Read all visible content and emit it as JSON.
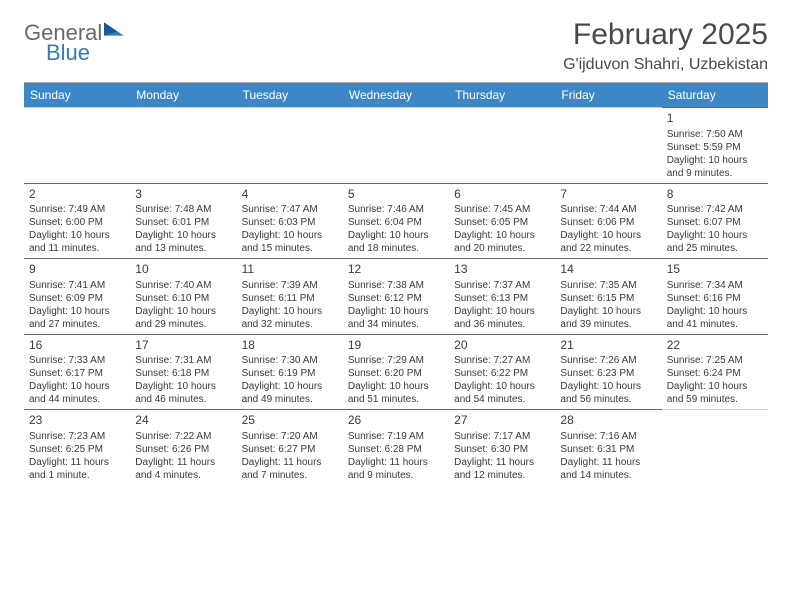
{
  "logo": {
    "text1": "General",
    "text2": "Blue"
  },
  "title": "February 2025",
  "subtitle": "G'ijduvon Shahri, Uzbekistan",
  "colors": {
    "header_bg": "#3d87c7",
    "header_text": "#ffffff",
    "body_text": "#3a3a3a",
    "rule": "#6a6a6a",
    "logo_gray": "#6a6a6a",
    "logo_blue": "#2f7bbf"
  },
  "day_labels": [
    "Sunday",
    "Monday",
    "Tuesday",
    "Wednesday",
    "Thursday",
    "Friday",
    "Saturday"
  ],
  "leading_blanks": 6,
  "days": [
    {
      "n": "1",
      "sr": "Sunrise: 7:50 AM",
      "ss": "Sunset: 5:59 PM",
      "dl1": "Daylight: 10 hours",
      "dl2": "and 9 minutes."
    },
    {
      "n": "2",
      "sr": "Sunrise: 7:49 AM",
      "ss": "Sunset: 6:00 PM",
      "dl1": "Daylight: 10 hours",
      "dl2": "and 11 minutes."
    },
    {
      "n": "3",
      "sr": "Sunrise: 7:48 AM",
      "ss": "Sunset: 6:01 PM",
      "dl1": "Daylight: 10 hours",
      "dl2": "and 13 minutes."
    },
    {
      "n": "4",
      "sr": "Sunrise: 7:47 AM",
      "ss": "Sunset: 6:03 PM",
      "dl1": "Daylight: 10 hours",
      "dl2": "and 15 minutes."
    },
    {
      "n": "5",
      "sr": "Sunrise: 7:46 AM",
      "ss": "Sunset: 6:04 PM",
      "dl1": "Daylight: 10 hours",
      "dl2": "and 18 minutes."
    },
    {
      "n": "6",
      "sr": "Sunrise: 7:45 AM",
      "ss": "Sunset: 6:05 PM",
      "dl1": "Daylight: 10 hours",
      "dl2": "and 20 minutes."
    },
    {
      "n": "7",
      "sr": "Sunrise: 7:44 AM",
      "ss": "Sunset: 6:06 PM",
      "dl1": "Daylight: 10 hours",
      "dl2": "and 22 minutes."
    },
    {
      "n": "8",
      "sr": "Sunrise: 7:42 AM",
      "ss": "Sunset: 6:07 PM",
      "dl1": "Daylight: 10 hours",
      "dl2": "and 25 minutes."
    },
    {
      "n": "9",
      "sr": "Sunrise: 7:41 AM",
      "ss": "Sunset: 6:09 PM",
      "dl1": "Daylight: 10 hours",
      "dl2": "and 27 minutes."
    },
    {
      "n": "10",
      "sr": "Sunrise: 7:40 AM",
      "ss": "Sunset: 6:10 PM",
      "dl1": "Daylight: 10 hours",
      "dl2": "and 29 minutes."
    },
    {
      "n": "11",
      "sr": "Sunrise: 7:39 AM",
      "ss": "Sunset: 6:11 PM",
      "dl1": "Daylight: 10 hours",
      "dl2": "and 32 minutes."
    },
    {
      "n": "12",
      "sr": "Sunrise: 7:38 AM",
      "ss": "Sunset: 6:12 PM",
      "dl1": "Daylight: 10 hours",
      "dl2": "and 34 minutes."
    },
    {
      "n": "13",
      "sr": "Sunrise: 7:37 AM",
      "ss": "Sunset: 6:13 PM",
      "dl1": "Daylight: 10 hours",
      "dl2": "and 36 minutes."
    },
    {
      "n": "14",
      "sr": "Sunrise: 7:35 AM",
      "ss": "Sunset: 6:15 PM",
      "dl1": "Daylight: 10 hours",
      "dl2": "and 39 minutes."
    },
    {
      "n": "15",
      "sr": "Sunrise: 7:34 AM",
      "ss": "Sunset: 6:16 PM",
      "dl1": "Daylight: 10 hours",
      "dl2": "and 41 minutes."
    },
    {
      "n": "16",
      "sr": "Sunrise: 7:33 AM",
      "ss": "Sunset: 6:17 PM",
      "dl1": "Daylight: 10 hours",
      "dl2": "and 44 minutes."
    },
    {
      "n": "17",
      "sr": "Sunrise: 7:31 AM",
      "ss": "Sunset: 6:18 PM",
      "dl1": "Daylight: 10 hours",
      "dl2": "and 46 minutes."
    },
    {
      "n": "18",
      "sr": "Sunrise: 7:30 AM",
      "ss": "Sunset: 6:19 PM",
      "dl1": "Daylight: 10 hours",
      "dl2": "and 49 minutes."
    },
    {
      "n": "19",
      "sr": "Sunrise: 7:29 AM",
      "ss": "Sunset: 6:20 PM",
      "dl1": "Daylight: 10 hours",
      "dl2": "and 51 minutes."
    },
    {
      "n": "20",
      "sr": "Sunrise: 7:27 AM",
      "ss": "Sunset: 6:22 PM",
      "dl1": "Daylight: 10 hours",
      "dl2": "and 54 minutes."
    },
    {
      "n": "21",
      "sr": "Sunrise: 7:26 AM",
      "ss": "Sunset: 6:23 PM",
      "dl1": "Daylight: 10 hours",
      "dl2": "and 56 minutes."
    },
    {
      "n": "22",
      "sr": "Sunrise: 7:25 AM",
      "ss": "Sunset: 6:24 PM",
      "dl1": "Daylight: 10 hours",
      "dl2": "and 59 minutes."
    },
    {
      "n": "23",
      "sr": "Sunrise: 7:23 AM",
      "ss": "Sunset: 6:25 PM",
      "dl1": "Daylight: 11 hours",
      "dl2": "and 1 minute."
    },
    {
      "n": "24",
      "sr": "Sunrise: 7:22 AM",
      "ss": "Sunset: 6:26 PM",
      "dl1": "Daylight: 11 hours",
      "dl2": "and 4 minutes."
    },
    {
      "n": "25",
      "sr": "Sunrise: 7:20 AM",
      "ss": "Sunset: 6:27 PM",
      "dl1": "Daylight: 11 hours",
      "dl2": "and 7 minutes."
    },
    {
      "n": "26",
      "sr": "Sunrise: 7:19 AM",
      "ss": "Sunset: 6:28 PM",
      "dl1": "Daylight: 11 hours",
      "dl2": "and 9 minutes."
    },
    {
      "n": "27",
      "sr": "Sunrise: 7:17 AM",
      "ss": "Sunset: 6:30 PM",
      "dl1": "Daylight: 11 hours",
      "dl2": "and 12 minutes."
    },
    {
      "n": "28",
      "sr": "Sunrise: 7:16 AM",
      "ss": "Sunset: 6:31 PM",
      "dl1": "Daylight: 11 hours",
      "dl2": "and 14 minutes."
    }
  ]
}
